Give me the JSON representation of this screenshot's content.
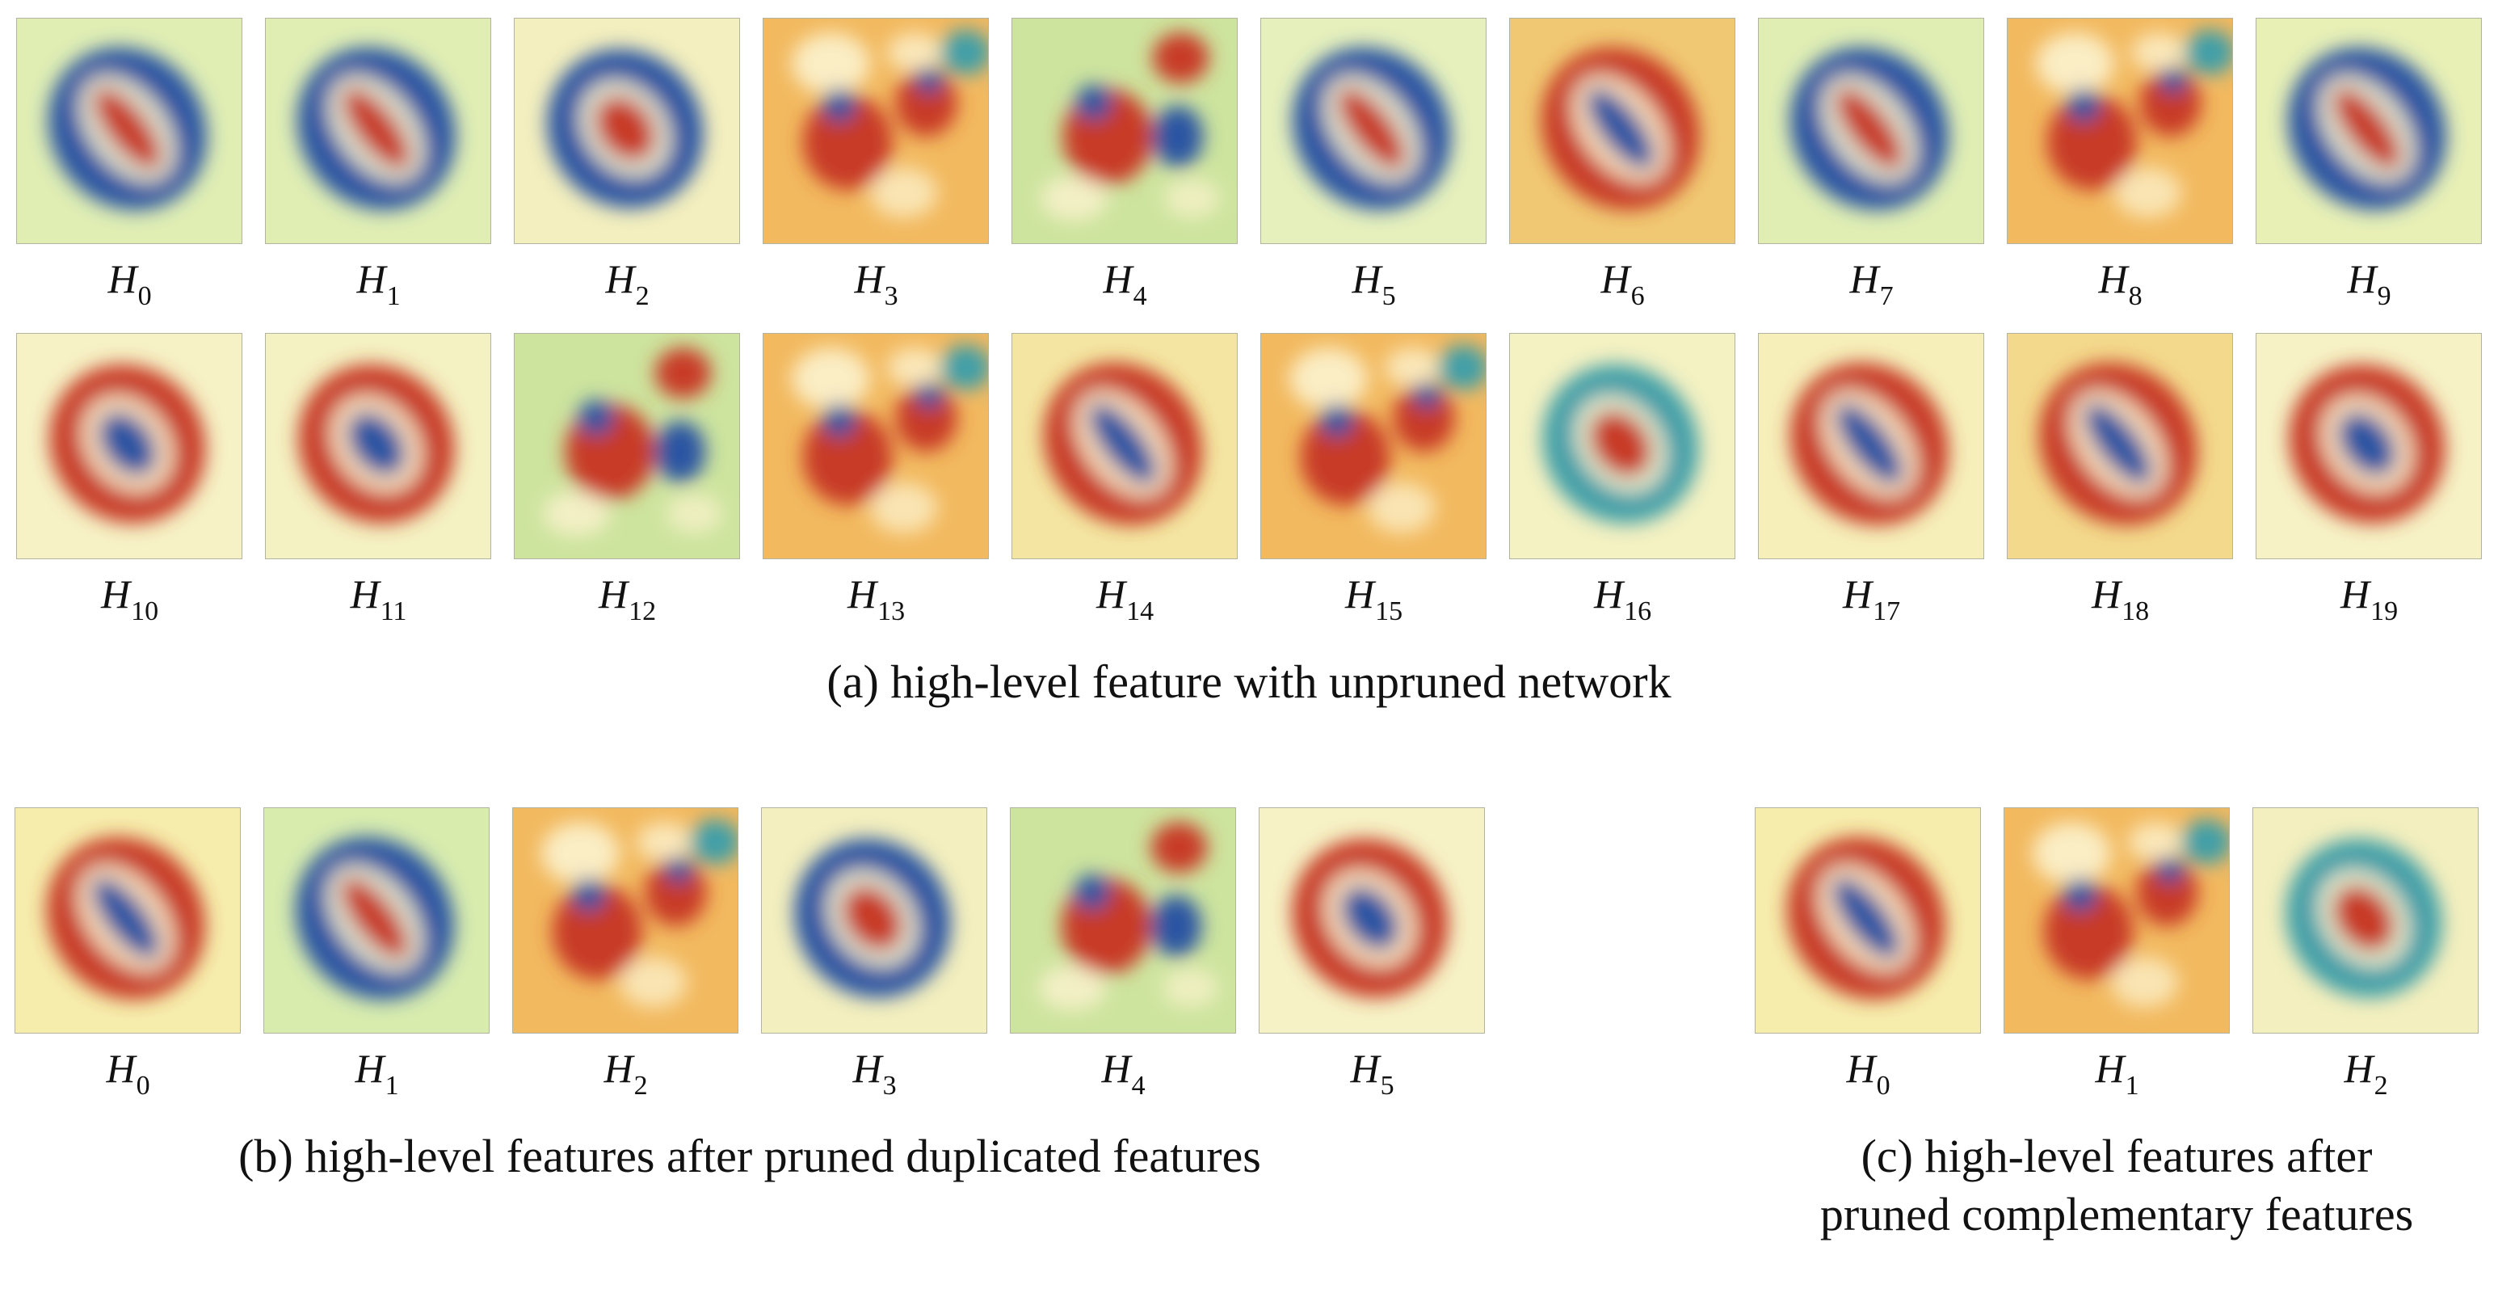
{
  "colors": {
    "red": "#c83a28",
    "blue": "#2a55a2",
    "teal": "#3f9fa8",
    "cream": "#fcf3cf"
  },
  "panels": [
    {
      "id": "a",
      "caption": "(a) high-level feature with unpruned network",
      "rows": [
        [
          {
            "label": "H",
            "sub": "0",
            "bg": "#e0eeb4",
            "pattern": "blue-blob-red-slash"
          },
          {
            "label": "H",
            "sub": "1",
            "bg": "#e0eeb4",
            "pattern": "blue-blob-red-slash"
          },
          {
            "label": "H",
            "sub": "2",
            "bg": "#f4efbe",
            "pattern": "blue-blob-red-core"
          },
          {
            "label": "H",
            "sub": "3",
            "bg": "#f2b95f",
            "pattern": "scatter-warm"
          },
          {
            "label": "H",
            "sub": "4",
            "bg": "#cde49e",
            "pattern": "scatter-cool"
          },
          {
            "label": "H",
            "sub": "5",
            "bg": "#e6f0bc",
            "pattern": "blue-blob-red-slash"
          },
          {
            "label": "H",
            "sub": "6",
            "bg": "#f0c873",
            "pattern": "red-blob-blue-slash"
          },
          {
            "label": "H",
            "sub": "7",
            "bg": "#e0eeb4",
            "pattern": "blue-blob-red-slash"
          },
          {
            "label": "H",
            "sub": "8",
            "bg": "#f2b95f",
            "pattern": "scatter-warm"
          },
          {
            "label": "H",
            "sub": "9",
            "bg": "#e8f0b6",
            "pattern": "blue-blob-red-slash"
          }
        ],
        [
          {
            "label": "H",
            "sub": "10",
            "bg": "#f6f2c6",
            "pattern": "red-blob-blue-core"
          },
          {
            "label": "H",
            "sub": "11",
            "bg": "#f4f1c2",
            "pattern": "red-blob-blue-core"
          },
          {
            "label": "H",
            "sub": "12",
            "bg": "#cde49e",
            "pattern": "scatter-cool"
          },
          {
            "label": "H",
            "sub": "13",
            "bg": "#f2b95f",
            "pattern": "scatter-warm"
          },
          {
            "label": "H",
            "sub": "14",
            "bg": "#f4e6a2",
            "pattern": "red-blob-blue-slash"
          },
          {
            "label": "H",
            "sub": "15",
            "bg": "#f2b95f",
            "pattern": "scatter-warm"
          },
          {
            "label": "H",
            "sub": "16",
            "bg": "#f4f1c2",
            "pattern": "teal-blob-red-core"
          },
          {
            "label": "H",
            "sub": "17",
            "bg": "#f6efba",
            "pattern": "red-blob-blue-slash"
          },
          {
            "label": "H",
            "sub": "18",
            "bg": "#f3d98c",
            "pattern": "red-blob-blue-slash"
          },
          {
            "label": "H",
            "sub": "19",
            "bg": "#f6f2c6",
            "pattern": "red-blob-blue-core"
          }
        ]
      ]
    },
    {
      "id": "b",
      "caption": "(b) high-level features after pruned duplicated features",
      "rows": [
        [
          {
            "label": "H",
            "sub": "0",
            "bg": "#f6edac",
            "pattern": "red-blob-blue-slash"
          },
          {
            "label": "H",
            "sub": "1",
            "bg": "#d8ecae",
            "pattern": "blue-blob-red-slash"
          },
          {
            "label": "H",
            "sub": "2",
            "bg": "#f2b95f",
            "pattern": "scatter-warm"
          },
          {
            "label": "H",
            "sub": "3",
            "bg": "#f4efbe",
            "pattern": "blue-blob-red-core"
          },
          {
            "label": "H",
            "sub": "4",
            "bg": "#cde49e",
            "pattern": "scatter-cool"
          },
          {
            "label": "H",
            "sub": "5",
            "bg": "#f6f2c6",
            "pattern": "red-blob-blue-core"
          }
        ]
      ]
    },
    {
      "id": "c",
      "caption_lines": [
        "(c) high-level features after",
        "pruned complementary features"
      ],
      "rows": [
        [
          {
            "label": "H",
            "sub": "0",
            "bg": "#f6edac",
            "pattern": "red-blob-blue-slash"
          },
          {
            "label": "H",
            "sub": "1",
            "bg": "#f2b95f",
            "pattern": "scatter-warm"
          },
          {
            "label": "H",
            "sub": "2",
            "bg": "#f4efbe",
            "pattern": "teal-blob-red-core"
          }
        ]
      ]
    }
  ]
}
